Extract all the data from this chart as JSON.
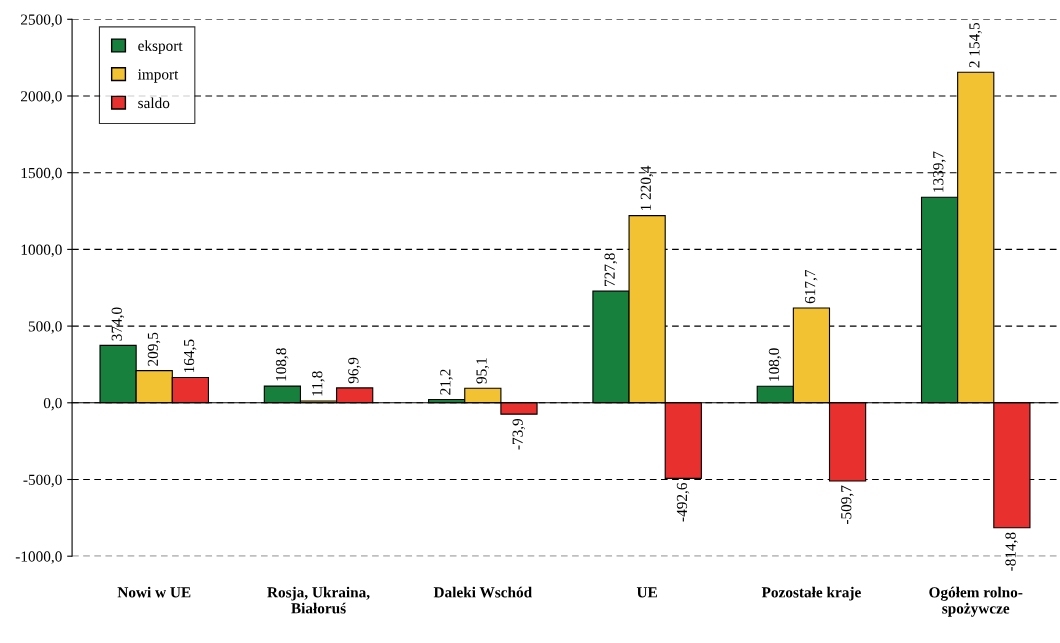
{
  "chart_data": {
    "type": "bar",
    "categories": [
      "Nowi w UE",
      "Rosja, Ukraina,\nBiałoruś",
      "Daleki Wschód",
      "UE",
      "Pozostałe kraje",
      "Ogółem rolno-\nspożywcze"
    ],
    "series": [
      {
        "name": "eksport",
        "color": "#16803c",
        "values": [
          374.0,
          108.8,
          21.2,
          727.8,
          108.0,
          1339.7
        ],
        "value_labels": [
          "374,0",
          "108,8",
          "21,2",
          "727,8",
          "108,0",
          "1339,7"
        ]
      },
      {
        "name": "import",
        "color": "#f2c233",
        "values": [
          209.5,
          11.8,
          95.1,
          1220.4,
          617.7,
          2154.5
        ],
        "value_labels": [
          "209,5",
          "11,8",
          "95,1",
          "1 220,4",
          "617,7",
          "2 154,5"
        ]
      },
      {
        "name": "saldo",
        "color": "#e8302e",
        "values": [
          164.5,
          96.9,
          -73.9,
          -492.6,
          -509.7,
          -814.8
        ],
        "value_labels": [
          "164,5",
          "96,9",
          "-73,9",
          "-492,6",
          "-509,7",
          "-814,8"
        ]
      }
    ],
    "ylim": [
      -1000,
      2500
    ],
    "yticks": [
      {
        "value": -1000,
        "label": "-1000,0"
      },
      {
        "value": -500,
        "label": "-500,0"
      },
      {
        "value": 0,
        "label": "0,0"
      },
      {
        "value": 500,
        "label": "500,0"
      },
      {
        "value": 1000,
        "label": "1000,0"
      },
      {
        "value": 1500,
        "label": "1500,0"
      },
      {
        "value": 2000,
        "label": "2000,0"
      },
      {
        "value": 2500,
        "label": "2500,0"
      }
    ],
    "grid": "y",
    "legend": "top left"
  }
}
